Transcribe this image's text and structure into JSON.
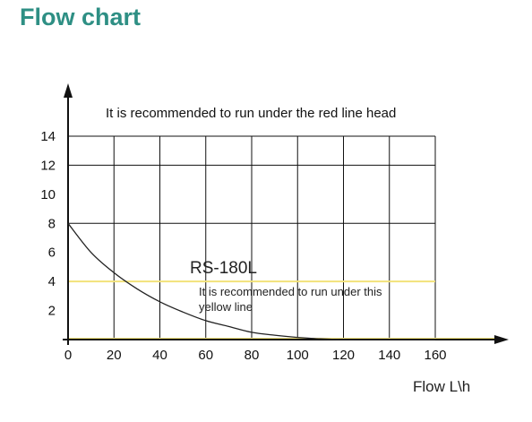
{
  "page": {
    "title": "Flow chart"
  },
  "chart_data": {
    "type": "line",
    "title": "",
    "xlabel": "Flow L\\h",
    "ylabel": "",
    "xlim": [
      0,
      160
    ],
    "ylim": [
      0,
      14
    ],
    "grid": true,
    "x_ticks": [
      "0",
      "20",
      "40",
      "60",
      "80",
      "100",
      "120",
      "140",
      "160"
    ],
    "y_ticks": [
      "2",
      "4",
      "6",
      "8",
      "10",
      "12",
      "14"
    ],
    "series": [
      {
        "name": "RS-180L",
        "x": [
          0,
          10,
          20,
          30,
          40,
          50,
          60,
          70,
          80,
          90,
          100,
          110,
          120,
          130,
          140,
          150,
          160
        ],
        "y": [
          8,
          6.0,
          4.6,
          3.5,
          2.6,
          1.9,
          1.3,
          0.9,
          0.5,
          0.3,
          0.15,
          0.05,
          0,
          0,
          0,
          0,
          0
        ],
        "color": "#222222"
      }
    ],
    "reference_lines": [
      {
        "axis": "y",
        "value": 4,
        "color": "#f2e27a"
      },
      {
        "axis": "y",
        "value": 0,
        "color": "#f2e27a"
      }
    ],
    "annotations": {
      "red_line_note": "It is recommended to run under the red line head",
      "model_label": "RS-180L",
      "yellow_line_note_1": "It is recommended to run under this",
      "yellow_line_note_2": "yellow line"
    },
    "colors": {
      "title": "#2e8f84",
      "grid": "#111111",
      "yellow_line": "#f2e27a"
    }
  }
}
